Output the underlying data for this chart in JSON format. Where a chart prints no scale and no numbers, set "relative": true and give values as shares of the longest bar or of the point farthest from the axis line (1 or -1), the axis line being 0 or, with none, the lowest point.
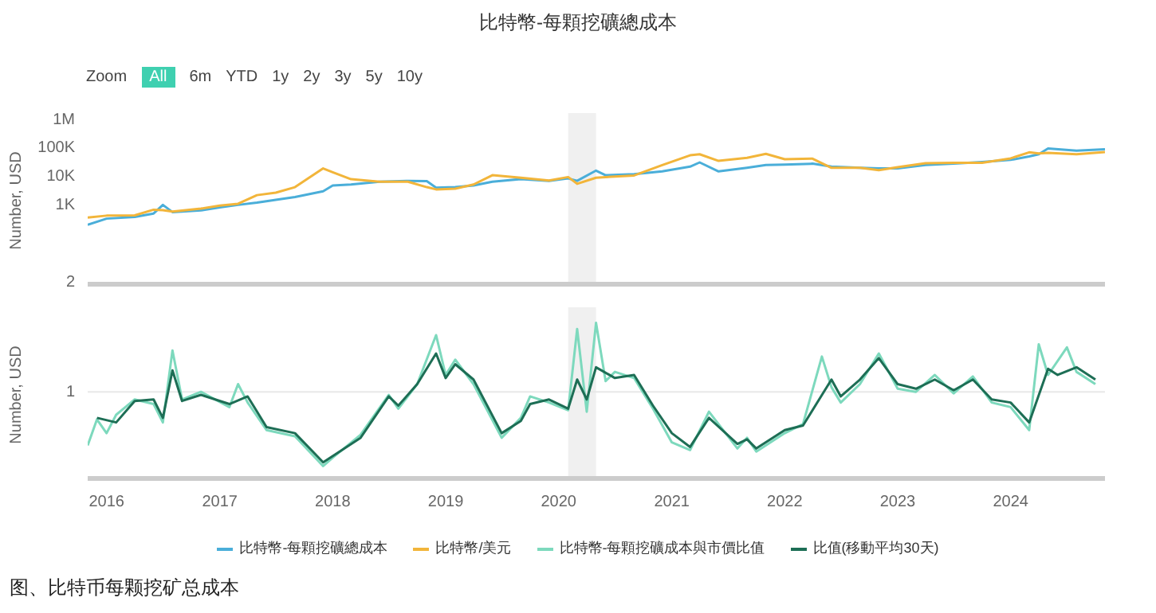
{
  "chart_data": [
    {
      "type": "line",
      "title": "比特幣-每顆挖礦總成本",
      "ylabel": "Number, USD",
      "annotations": [
        "Zoom",
        "All",
        "6m",
        "YTD",
        "1y",
        "2y",
        "3y",
        "5y",
        "10y"
      ],
      "log": "y",
      "legend": "bottom",
      "marker": "none",
      "line_style": "solid",
      "tick_labels": "y",
      "xlim": [
        "2015-11",
        "2024-11"
      ],
      "xticks": [
        "2016",
        "2017",
        "2018",
        "2019",
        "2020",
        "2021",
        "2022",
        "2023",
        "2024"
      ],
      "ylim": [
        2,
        1000000
      ],
      "yticks": [
        2,
        {
          "value": 1000,
          "label": "1K"
        },
        {
          "value": 10000,
          "label": "10K"
        },
        {
          "value": 100000,
          "label": "100K"
        },
        {
          "value": 1000000,
          "label": "1M"
        }
      ],
      "bands": [
        {
          "axis": "x",
          "from": "2020-02",
          "to": "2020-05",
          "color": "#f0f0f0"
        }
      ],
      "x": [
        "2015-11",
        "2016-01",
        "2016-04",
        "2016-06",
        "2016-07",
        "2016-08",
        "2016-11",
        "2017-01",
        "2017-03",
        "2017-05",
        "2017-07",
        "2017-09",
        "2017-12",
        "2018-01",
        "2018-03",
        "2018-06",
        "2018-09",
        "2018-11",
        "2018-12",
        "2019-02",
        "2019-04",
        "2019-06",
        "2019-09",
        "2019-12",
        "2020-02",
        "2020-03",
        "2020-05",
        "2020-06",
        "2020-09",
        "2020-12",
        "2021-03",
        "2021-04",
        "2021-06",
        "2021-09",
        "2021-11",
        "2022-01",
        "2022-04",
        "2022-06",
        "2022-09",
        "2022-11",
        "2023-01",
        "2023-04",
        "2023-07",
        "2023-10",
        "2024-01",
        "2024-03",
        "2024-04",
        "2024-05",
        "2024-08",
        "2024-11"
      ],
      "series": [
        {
          "name": "比特幣-每顆挖礦總成本",
          "color": "#4aaed9",
          "values": [
            200,
            330,
            380,
            500,
            1000,
            560,
            640,
            820,
            1000,
            1200,
            1500,
            1900,
            3000,
            4800,
            5200,
            6500,
            7000,
            6800,
            4000,
            4200,
            4800,
            6500,
            8000,
            7000,
            8500,
            7000,
            16000,
            11000,
            12000,
            15000,
            22000,
            31000,
            15000,
            20000,
            25000,
            26000,
            28000,
            22000,
            20000,
            19000,
            19000,
            25000,
            28000,
            32000,
            38000,
            50000,
            60000,
            95000,
            80000,
            90000
          ]
        },
        {
          "name": "比特幣/美元",
          "color": "#f2b53a",
          "values": [
            360,
            420,
            430,
            680,
            650,
            580,
            740,
            950,
            1100,
            2200,
            2700,
            4200,
            19000,
            14000,
            8000,
            6500,
            6500,
            4200,
            3500,
            3700,
            5200,
            11000,
            9000,
            7200,
            9500,
            5500,
            9000,
            9500,
            10800,
            25000,
            55000,
            60000,
            35000,
            45000,
            62000,
            40000,
            42000,
            20000,
            20000,
            16500,
            21000,
            29000,
            30000,
            30000,
            43000,
            70000,
            64000,
            67000,
            60000,
            72000
          ]
        }
      ]
    },
    {
      "type": "line",
      "ylabel": "Number, USD",
      "relative": true,
      "legend": "bottom",
      "marker": "none",
      "line_style": "solid",
      "tick_labels": "x",
      "annotations": [
        "图、比特币每颗挖矿总成本"
      ],
      "xlim": [
        "2015-11",
        "2024-11"
      ],
      "xticks": [
        "2016",
        "2017",
        "2018",
        "2019",
        "2020",
        "2021",
        "2022",
        "2023",
        "2024"
      ],
      "bands": [
        {
          "axis": "x",
          "from": "2020-02",
          "to": "2020-05",
          "color": "#f0f0f0"
        }
      ],
      "ref_lines": [
        {
          "axis": "y",
          "value": 0.55,
          "label": "1",
          "color": "#e8e8e8"
        }
      ],
      "series": [
        {
          "name": "比特幣-每顆挖礦成本與市價比值",
          "color": "#7dd9bd",
          "x": [
            "2015-11",
            "2015-12",
            "2016-01",
            "2016-02",
            "2016-04",
            "2016-06",
            "2016-07",
            "2016-08",
            "2016-09",
            "2016-11",
            "2017-02",
            "2017-03",
            "2017-04",
            "2017-06",
            "2017-09",
            "2017-12",
            "2018-01",
            "2018-04",
            "2018-07",
            "2018-08",
            "2018-10",
            "2018-12",
            "2019-01",
            "2019-02",
            "2019-04",
            "2019-07",
            "2019-09",
            "2019-10",
            "2019-12",
            "2020-02",
            "2020-03",
            "2020-04",
            "2020-05",
            "2020-06",
            "2020-07",
            "2020-09",
            "2020-11",
            "2021-01",
            "2021-03",
            "2021-05",
            "2021-08",
            "2021-09",
            "2021-10",
            "2022-01",
            "2022-03",
            "2022-05",
            "2022-06",
            "2022-07",
            "2022-09",
            "2022-11",
            "2023-01",
            "2023-03",
            "2023-05",
            "2023-07",
            "2023-09",
            "2023-11",
            "2024-01",
            "2024-03",
            "2024-04",
            "2024-05",
            "2024-07",
            "2024-08",
            "2024-10"
          ],
          "values": [
            0.2,
            0.37,
            0.28,
            0.4,
            0.5,
            0.47,
            0.35,
            0.82,
            0.5,
            0.55,
            0.45,
            0.6,
            0.48,
            0.3,
            0.26,
            0.065,
            0.12,
            0.27,
            0.53,
            0.44,
            0.6,
            0.92,
            0.66,
            0.76,
            0.6,
            0.25,
            0.38,
            0.52,
            0.48,
            0.43,
            0.96,
            0.42,
            1.0,
            0.62,
            0.68,
            0.64,
            0.44,
            0.22,
            0.17,
            0.42,
            0.18,
            0.25,
            0.16,
            0.28,
            0.34,
            0.78,
            0.58,
            0.48,
            0.6,
            0.8,
            0.57,
            0.55,
            0.66,
            0.54,
            0.65,
            0.48,
            0.45,
            0.3,
            0.86,
            0.66,
            0.84,
            0.68,
            0.6
          ]
        },
        {
          "name": "比值(移動平均30天)",
          "color": "#1d6e55",
          "x": [
            "2015-12",
            "2016-02",
            "2016-04",
            "2016-06",
            "2016-07",
            "2016-08",
            "2016-09",
            "2016-11",
            "2017-02",
            "2017-04",
            "2017-06",
            "2017-09",
            "2017-12",
            "2018-04",
            "2018-07",
            "2018-08",
            "2018-10",
            "2018-12",
            "2019-01",
            "2019-02",
            "2019-04",
            "2019-07",
            "2019-09",
            "2019-10",
            "2019-12",
            "2020-02",
            "2020-03",
            "2020-04",
            "2020-05",
            "2020-07",
            "2020-09",
            "2020-11",
            "2021-01",
            "2021-03",
            "2021-05",
            "2021-08",
            "2021-09",
            "2021-10",
            "2022-01",
            "2022-03",
            "2022-06",
            "2022-07",
            "2022-09",
            "2022-11",
            "2023-01",
            "2023-03",
            "2023-05",
            "2023-07",
            "2023-09",
            "2023-11",
            "2024-01",
            "2024-03",
            "2024-05",
            "2024-06",
            "2024-08",
            "2024-10"
          ],
          "values": [
            0.38,
            0.35,
            0.49,
            0.5,
            0.38,
            0.69,
            0.49,
            0.53,
            0.47,
            0.52,
            0.32,
            0.28,
            0.09,
            0.25,
            0.52,
            0.46,
            0.6,
            0.8,
            0.64,
            0.73,
            0.63,
            0.28,
            0.36,
            0.47,
            0.5,
            0.44,
            0.63,
            0.5,
            0.71,
            0.64,
            0.66,
            0.46,
            0.28,
            0.19,
            0.38,
            0.21,
            0.24,
            0.18,
            0.3,
            0.33,
            0.63,
            0.52,
            0.63,
            0.77,
            0.6,
            0.57,
            0.63,
            0.56,
            0.63,
            0.5,
            0.48,
            0.35,
            0.7,
            0.66,
            0.71,
            0.63
          ]
        }
      ]
    }
  ]
}
